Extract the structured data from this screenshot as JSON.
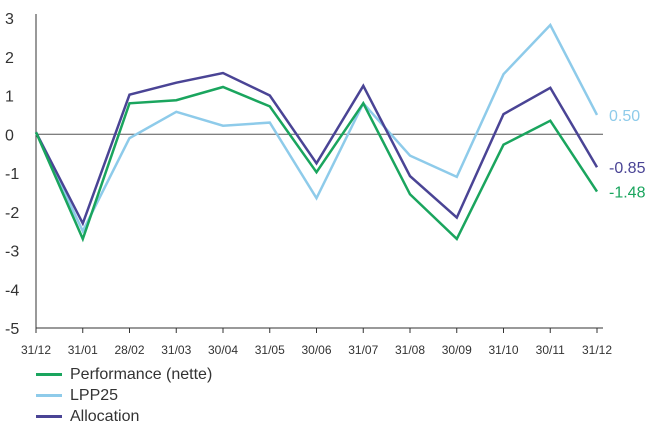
{
  "chart_data": {
    "type": "line",
    "categories": [
      "31/12",
      "31/01",
      "28/02",
      "31/03",
      "30/04",
      "31/05",
      "30/06",
      "31/07",
      "31/08",
      "30/09",
      "31/10",
      "30/11",
      "31/12"
    ],
    "ylim": [
      -5,
      3
    ],
    "yticks": [
      "3",
      "2",
      "1",
      "0",
      "-1",
      "-2",
      "-3",
      "-4",
      "-5"
    ],
    "grid": false,
    "legend_position": "bottom-left",
    "series": [
      {
        "name": "Performance (nette)",
        "color": "#1aa55e",
        "values": [
          0.05,
          -2.7,
          0.8,
          0.88,
          1.22,
          0.72,
          -0.98,
          0.8,
          -1.55,
          -2.7,
          -0.27,
          0.35,
          -1.48
        ],
        "end_label": "-1.48"
      },
      {
        "name": "LPP25",
        "color": "#8ecbea",
        "values": [
          0.05,
          -2.5,
          -0.1,
          0.58,
          0.22,
          0.3,
          -1.65,
          0.8,
          -0.55,
          -1.1,
          1.55,
          2.82,
          0.5
        ],
        "end_label": "0.50"
      },
      {
        "name": "Allocation",
        "color": "#4a4495",
        "values": [
          0.05,
          -2.3,
          1.02,
          1.33,
          1.58,
          1.0,
          -0.75,
          1.25,
          -1.08,
          -2.15,
          0.52,
          1.2,
          -0.85
        ],
        "end_label": "-0.85"
      }
    ]
  }
}
